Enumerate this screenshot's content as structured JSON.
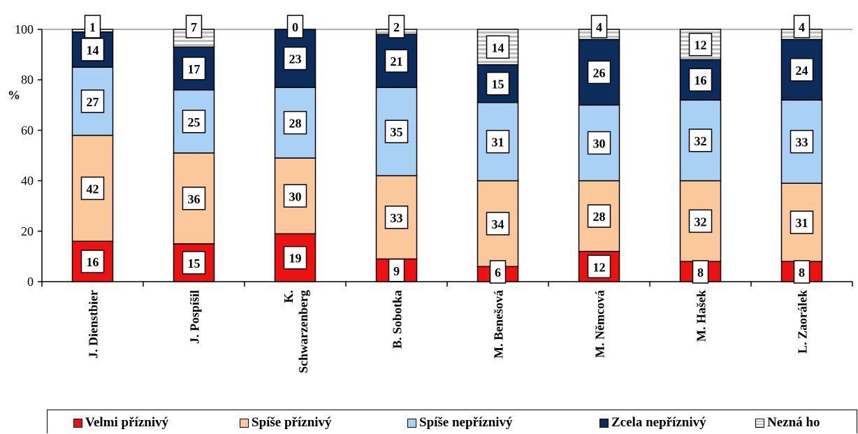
{
  "chart_data": {
    "type": "bar",
    "stacked": true,
    "title": "",
    "xlabel": "",
    "ylabel": "%",
    "ylim": [
      0,
      100
    ],
    "yticks": [
      0,
      20,
      40,
      60,
      80,
      100
    ],
    "categories": [
      "J. Dienstbier",
      "J. Pospíšil",
      "K. Schwarzenberg",
      "B. Sobotka",
      "M. Benešová",
      "M. Němcová",
      "M. Hašek",
      "L. Zaorálek"
    ],
    "category_lines": [
      [
        "J. Dienstbier"
      ],
      [
        "J. Pospíšil"
      ],
      [
        "K.",
        "Schwarzenberg"
      ],
      [
        "B. Sobotka"
      ],
      [
        "M. Benešová"
      ],
      [
        "M. Němcová"
      ],
      [
        "M. Hašek"
      ],
      [
        "L. Zaorálek"
      ]
    ],
    "series": [
      {
        "name": "Velmi příznivý",
        "color": "#ee1111",
        "values": [
          16,
          15,
          19,
          9,
          6,
          12,
          8,
          8
        ]
      },
      {
        "name": "Spíše příznivý",
        "color": "#fac89a",
        "values": [
          42,
          36,
          30,
          33,
          34,
          28,
          32,
          31
        ]
      },
      {
        "name": "Spíše nepříznivý",
        "color": "#a9d0f5",
        "values": [
          27,
          25,
          28,
          35,
          31,
          30,
          32,
          33
        ]
      },
      {
        "name": "Zcela nepříznivý",
        "color": "#0c2c5c",
        "values": [
          14,
          17,
          23,
          21,
          15,
          26,
          16,
          24
        ]
      },
      {
        "name": "Nezná ho",
        "color": "#e6e6e6",
        "pattern": "horizontal-stripes",
        "values": [
          1,
          7,
          0,
          2,
          14,
          4,
          12,
          4
        ]
      }
    ],
    "legend_position": "bottom",
    "grid": false,
    "data_labels": true
  }
}
